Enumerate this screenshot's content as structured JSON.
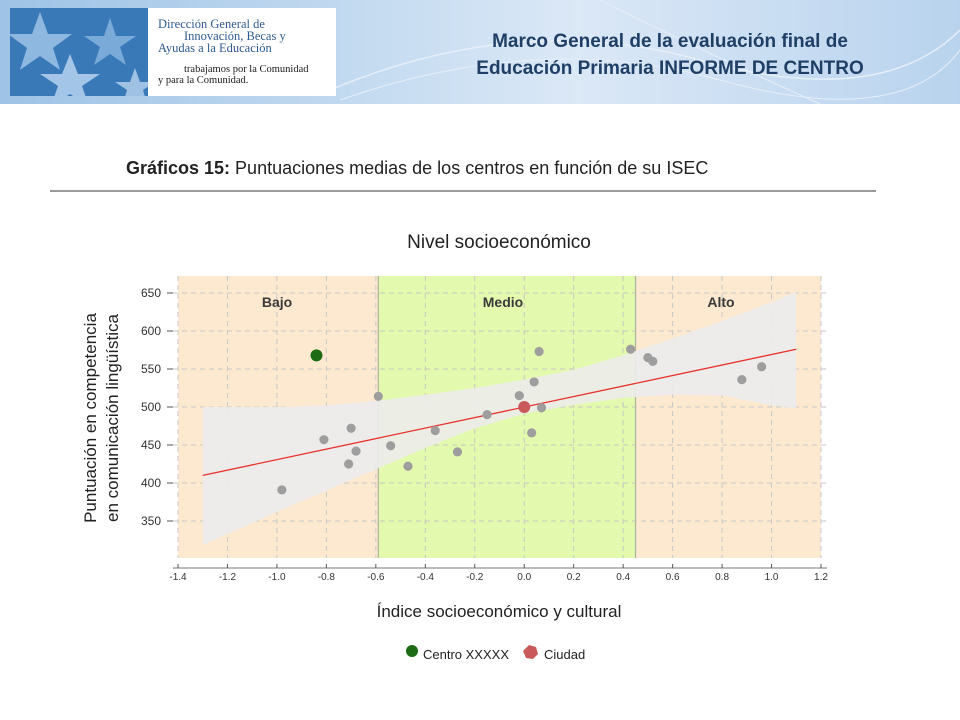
{
  "header": {
    "logo_line1": "Dirección General de",
    "logo_line2": "Innovación, Becas y",
    "logo_line3": "Ayudas a la Educación",
    "logo_sub1": "trabajamos por la Comunidad",
    "logo_sub2": "y para la Comunidad.",
    "title_line1": "Marco General de la evaluación final de",
    "title_line2": "Educación Primaria INFORME DE CENTRO"
  },
  "caption": {
    "prefix": "Gráficos 15:",
    "text": " Puntuaciones medias de los centros en función de su ISEC"
  },
  "colors": {
    "band_low": "#fde9cf",
    "band_mid": "#e3f9ae",
    "band_high": "#fde9cf",
    "confidence_band": "#ececec",
    "points": "#9e9e9e",
    "trend": "#e8322e",
    "centro": "#1e6b16",
    "ciudad": "#c9595a"
  },
  "chart_data": {
    "type": "scatter",
    "title": "Nivel socioeconómico",
    "xlabel": "Índice socioeconómico y cultural",
    "ylabel_line1": "Puntuación en competencia",
    "ylabel_line2": "en comunicación lingüística",
    "xlim": [
      -1.4,
      1.2
    ],
    "ylim": [
      300,
      670
    ],
    "xticks": [
      "-1.4",
      "-1.2",
      "-1.0",
      "-0.8",
      "-0.6",
      "-0.4",
      "-0.2",
      "0.0",
      "0.2",
      "0.4",
      "0.6",
      "0.8",
      "1.0",
      "1.2"
    ],
    "yticks": [
      "350",
      "400",
      "450",
      "500",
      "550",
      "600",
      "650"
    ],
    "grid": true,
    "bands": [
      {
        "label": "Bajo",
        "from": -1.4,
        "to": -0.59
      },
      {
        "label": "Medio",
        "from": -0.59,
        "to": 0.45
      },
      {
        "label": "Alto",
        "from": 0.45,
        "to": 1.2
      }
    ],
    "points": [
      {
        "x": -0.98,
        "y": 391
      },
      {
        "x": -0.81,
        "y": 457
      },
      {
        "x": -0.7,
        "y": 472
      },
      {
        "x": -0.68,
        "y": 442
      },
      {
        "x": -0.71,
        "y": 425
      },
      {
        "x": -0.59,
        "y": 514
      },
      {
        "x": -0.54,
        "y": 449
      },
      {
        "x": -0.47,
        "y": 422
      },
      {
        "x": -0.36,
        "y": 469
      },
      {
        "x": -0.27,
        "y": 441
      },
      {
        "x": -0.15,
        "y": 490
      },
      {
        "x": -0.02,
        "y": 515
      },
      {
        "x": 0.04,
        "y": 533
      },
      {
        "x": 0.06,
        "y": 573
      },
      {
        "x": 0.03,
        "y": 466
      },
      {
        "x": 0.07,
        "y": 499
      },
      {
        "x": 0.43,
        "y": 576
      },
      {
        "x": 0.5,
        "y": 565
      },
      {
        "x": 0.52,
        "y": 560
      },
      {
        "x": 0.88,
        "y": 536
      },
      {
        "x": 0.96,
        "y": 553
      }
    ],
    "highlighted": [
      {
        "name": "Centro XXXXX",
        "x": -0.84,
        "y": 568
      },
      {
        "name": "Ciudad",
        "x": 0.0,
        "y": 500
      }
    ],
    "trend_line": {
      "x": [
        -1.3,
        1.1
      ],
      "y": [
        410,
        576
      ]
    },
    "confidence_band": {
      "x": [
        -1.3,
        -1.0,
        -0.8,
        -0.6,
        -0.4,
        -0.2,
        0.0,
        0.2,
        0.4,
        0.6,
        0.8,
        1.0,
        1.1
      ],
      "upper": [
        500,
        500,
        502,
        508,
        516,
        525,
        536,
        549,
        568,
        590,
        613,
        638,
        652
      ],
      "lower": [
        318,
        362,
        390,
        418,
        446,
        472,
        491,
        503,
        512,
        516,
        515,
        502,
        498
      ]
    },
    "legend": [
      "Centro XXXXX",
      "Ciudad"
    ],
    "legend_position": "bottom"
  }
}
